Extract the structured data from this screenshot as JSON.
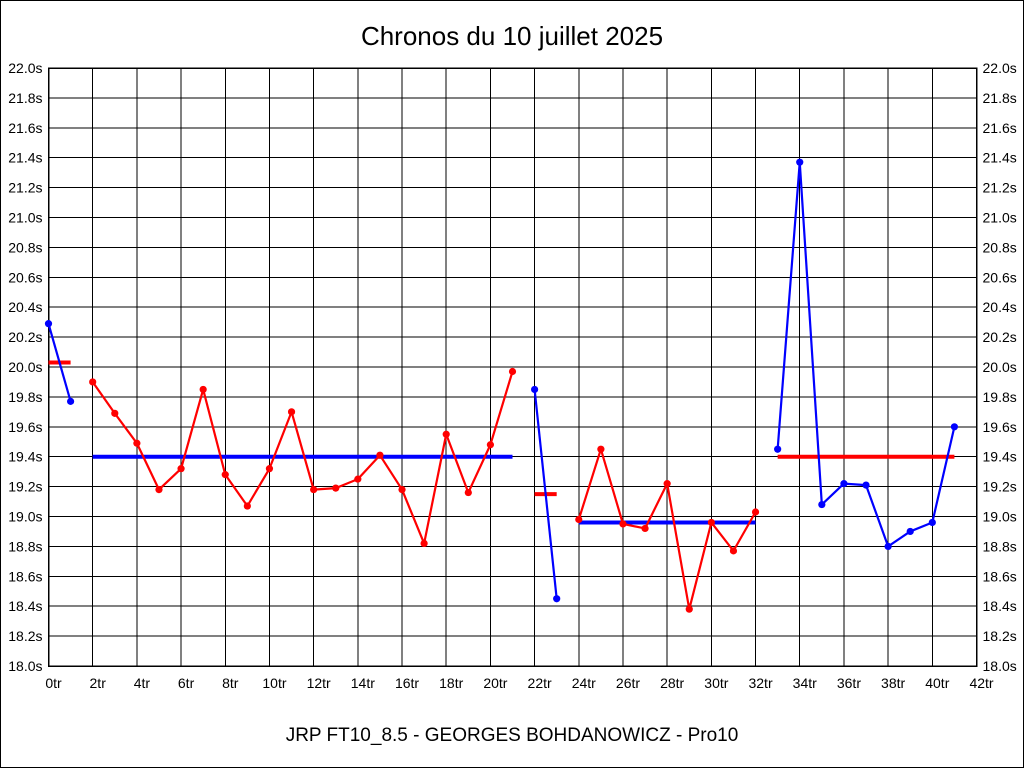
{
  "page": {
    "title": "Chronos du 10 juillet 2025",
    "footer": "JRP FT10_8.5 - GEORGES BOHDANOWICZ - Pro10"
  },
  "chart_data": {
    "type": "line",
    "title": "Chronos du 10 juillet 2025",
    "x_unit": "tr",
    "y_unit": "s",
    "xlim": [
      0,
      42
    ],
    "ylim": [
      18.0,
      22.0
    ],
    "x_tick_step": 2,
    "y_tick_step": 0.2,
    "grid": true,
    "legend": "none",
    "x_tick_labels": [
      "0tr",
      "2tr",
      "4tr",
      "6tr",
      "8tr",
      "10tr",
      "12tr",
      "14tr",
      "16tr",
      "18tr",
      "20tr",
      "22tr",
      "24tr",
      "26tr",
      "28tr",
      "30tr",
      "32tr",
      "34tr",
      "36tr",
      "38tr",
      "40tr",
      "42tr"
    ],
    "y_tick_labels_left": [
      "22.0s",
      "21.8s",
      "21.6s",
      "21.4s",
      "21.2s",
      "21.0s",
      "20.8s",
      "20.6s",
      "20.4s",
      "20.2s",
      "20.0s",
      "19.8s",
      "19.6s",
      "19.4s",
      "19.2s",
      "19.0s",
      "18.8s",
      "18.6s",
      "18.4s",
      "18.2s",
      "18.0s"
    ],
    "y_tick_labels_right": [
      "22.0s",
      "21.8s",
      "21.6s",
      "21.4s",
      "21.2s",
      "21.0s",
      "20.8s",
      "20.6s",
      "20.4s",
      "20.2s",
      "20.0s",
      "19.8s",
      "19.6s",
      "19.4s",
      "19.2s",
      "19.0s",
      "18.8s",
      "18.6s",
      "18.4s",
      "18.2s",
      "18.0s"
    ],
    "colors": {
      "red_series": "#ff0000",
      "blue_series": "#0000ff",
      "grid": "#000000",
      "background": "#ffffff"
    },
    "series": [
      {
        "name": "blue-run-1",
        "color": "#0000ff",
        "points": [
          [
            0,
            20.29
          ],
          [
            1,
            19.77
          ]
        ]
      },
      {
        "name": "red-run-1",
        "color": "#ff0000",
        "points": [
          [
            2,
            19.9
          ],
          [
            3,
            19.69
          ],
          [
            4,
            19.49
          ],
          [
            5,
            19.18
          ],
          [
            6,
            19.32
          ],
          [
            7,
            19.85
          ],
          [
            8,
            19.28
          ],
          [
            9,
            19.07
          ],
          [
            10,
            19.32
          ],
          [
            11,
            19.7
          ],
          [
            12,
            19.18
          ],
          [
            13,
            19.19
          ],
          [
            14,
            19.25
          ],
          [
            15,
            19.41
          ],
          [
            16,
            19.18
          ],
          [
            17,
            18.82
          ],
          [
            18,
            19.55
          ],
          [
            19,
            19.16
          ],
          [
            20,
            19.48
          ],
          [
            21,
            19.97
          ]
        ]
      },
      {
        "name": "blue-run-2",
        "color": "#0000ff",
        "points": [
          [
            22,
            19.85
          ],
          [
            23,
            18.45
          ]
        ]
      },
      {
        "name": "red-run-2",
        "color": "#ff0000",
        "points": [
          [
            24,
            18.98
          ],
          [
            25,
            19.45
          ],
          [
            26,
            18.95
          ],
          [
            27,
            18.92
          ],
          [
            28,
            19.22
          ],
          [
            29,
            18.38
          ],
          [
            30,
            18.96
          ],
          [
            31,
            18.77
          ],
          [
            32,
            19.03
          ]
        ]
      },
      {
        "name": "blue-run-3",
        "color": "#0000ff",
        "points": [
          [
            33,
            19.45
          ],
          [
            34,
            21.37
          ],
          [
            35,
            19.08
          ],
          [
            36,
            19.22
          ],
          [
            37,
            19.21
          ],
          [
            38,
            18.8
          ],
          [
            39,
            18.9
          ],
          [
            40,
            18.96
          ],
          [
            41,
            19.6
          ]
        ]
      }
    ],
    "average_lines": [
      {
        "name": "mean-of-blue-run-1",
        "color": "#ff0000",
        "value": 20.03,
        "x_from": 0,
        "x_to": 1
      },
      {
        "name": "mean-of-red-run-1",
        "color": "#0000ff",
        "value": 19.4,
        "x_from": 2,
        "x_to": 21
      },
      {
        "name": "mean-of-blue-run-2",
        "color": "#ff0000",
        "value": 19.15,
        "x_from": 22,
        "x_to": 23
      },
      {
        "name": "mean-of-red-run-2",
        "color": "#0000ff",
        "value": 18.96,
        "x_from": 24,
        "x_to": 32
      },
      {
        "name": "mean-of-blue-run-3",
        "color": "#ff0000",
        "value": 19.4,
        "x_from": 33,
        "x_to": 41
      }
    ]
  }
}
